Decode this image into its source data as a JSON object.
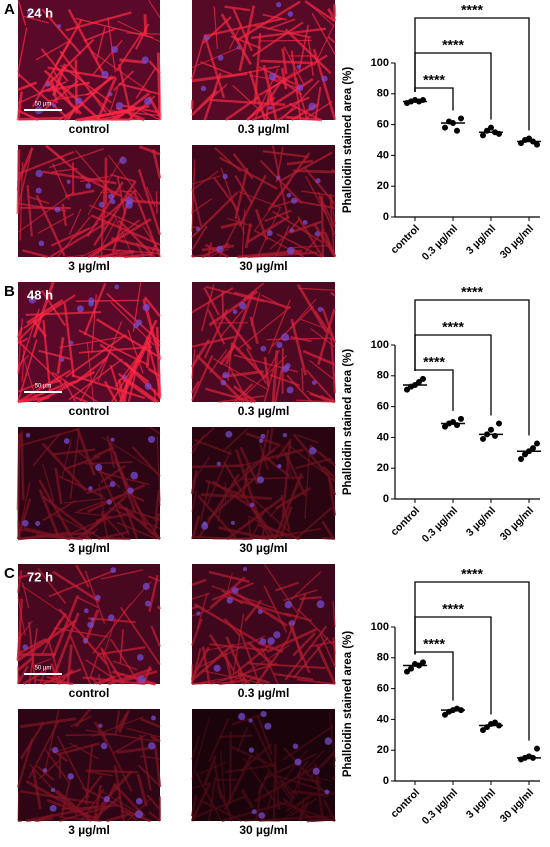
{
  "chart_data": [
    {
      "type": "dotplot",
      "ylabel": "Phalloidin stained area (%)",
      "categories": [
        "control",
        "0.3 µg/ml",
        "3 µg/ml",
        "30 µg/ml"
      ],
      "values": [
        [
          74,
          75,
          76,
          75,
          76
        ],
        [
          58,
          62,
          61,
          56,
          64
        ],
        [
          53,
          56,
          58,
          55,
          54
        ],
        [
          48,
          50,
          51,
          49,
          47
        ]
      ],
      "medians": [
        75,
        61,
        55,
        49
      ],
      "significance_labels": [
        null,
        "****",
        "****",
        "****"
      ],
      "color": "#000000",
      "ylim": [
        0,
        100
      ],
      "yticks": [
        0,
        20,
        40,
        60,
        80,
        100
      ]
    },
    {
      "type": "dotplot",
      "ylabel": "Phalloidin stained area (%)",
      "categories": [
        "control",
        "0.3 µg/ml",
        "3 µg/ml",
        "30 µg/ml"
      ],
      "values": [
        [
          71,
          73,
          74,
          76,
          78
        ],
        [
          47,
          49,
          50,
          48,
          52
        ],
        [
          39,
          42,
          45,
          41,
          49
        ],
        [
          26,
          29,
          31,
          33,
          36
        ]
      ],
      "medians": [
        74,
        49,
        42,
        31
      ],
      "significance_labels": [
        null,
        "****",
        "****",
        "****"
      ],
      "color": "#000000",
      "ylim": [
        0,
        100
      ],
      "yticks": [
        0,
        20,
        40,
        60,
        80,
        100
      ]
    },
    {
      "type": "dotplot",
      "ylabel": "Phalloidin stained area (%)",
      "categories": [
        "control",
        "0.3 µg/ml",
        "3 µg/ml",
        "30 µg/ml"
      ],
      "values": [
        [
          71,
          73,
          76,
          75,
          77
        ],
        [
          43,
          45,
          46,
          47,
          46
        ],
        [
          33,
          35,
          37,
          38,
          36
        ],
        [
          14,
          15,
          16,
          15,
          21
        ]
      ],
      "medians": [
        75,
        46,
        36,
        15
      ],
      "significance_labels": [
        null,
        "****",
        "****",
        "****"
      ],
      "color": "#000000",
      "ylim": [
        0,
        100
      ],
      "yticks": [
        0,
        20,
        40,
        60,
        80,
        100
      ]
    }
  ],
  "panels": [
    {
      "letter": "A",
      "time": "24 h",
      "scale_bar": "50 µm",
      "image_labels": [
        "control",
        "0.3 µg/ml",
        "3 µg/ml",
        "30 µg/ml"
      ]
    },
    {
      "letter": "B",
      "time": "48 h",
      "scale_bar": "50 µm",
      "image_labels": [
        "control",
        "0.3 µg/ml",
        "3 µg/ml",
        "30 µg/ml"
      ]
    },
    {
      "letter": "C",
      "time": "72 h",
      "scale_bar": "50 µm",
      "image_labels": [
        "control",
        "0.3 µg/ml",
        "3 µg/ml",
        "30 µg/ml"
      ]
    }
  ]
}
